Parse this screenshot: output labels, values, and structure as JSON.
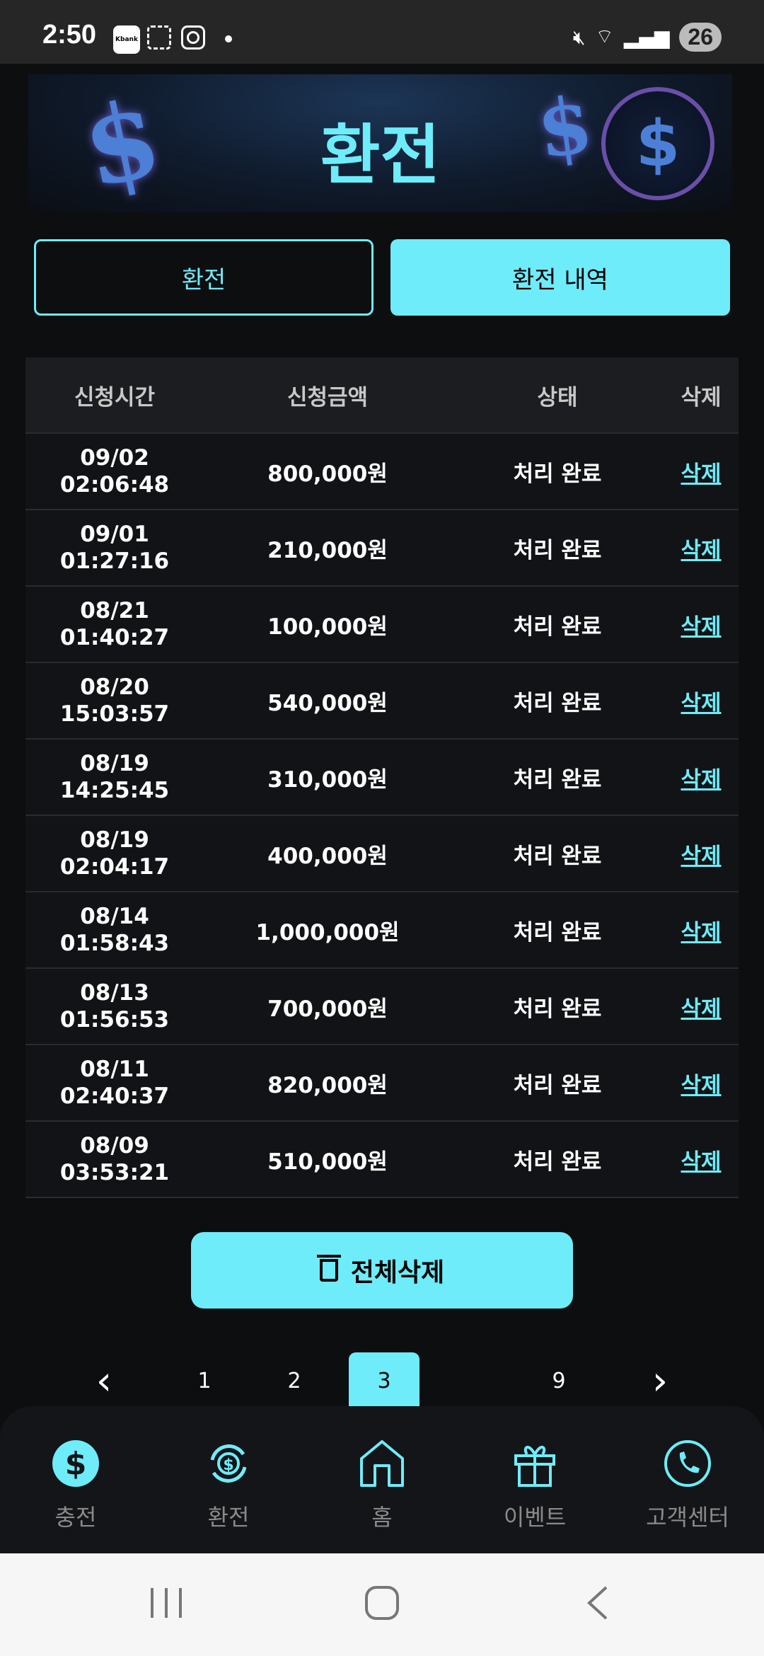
{
  "status_bar": {
    "time": "2:50",
    "app_icons": [
      "kbank-icon",
      "gallery-icon",
      "instagram-icon",
      "dot-icon"
    ],
    "kbank_label": "Kbank",
    "battery": "26",
    "right_icons": [
      "mute-icon",
      "wifi-icon",
      "signal-icon"
    ]
  },
  "banner": {
    "title": "환전"
  },
  "tabs": [
    {
      "label": "환전",
      "active": false
    },
    {
      "label": "환전 내역",
      "active": true
    }
  ],
  "table": {
    "headers": [
      "신청시간",
      "신청금액",
      "상태",
      "삭제"
    ],
    "rows": [
      {
        "date": "09/02",
        "time": "02:06:48",
        "amount": "800,000원",
        "status": "처리 완료",
        "action": "삭제"
      },
      {
        "date": "09/01",
        "time": "01:27:16",
        "amount": "210,000원",
        "status": "처리 완료",
        "action": "삭제"
      },
      {
        "date": "08/21",
        "time": "01:40:27",
        "amount": "100,000원",
        "status": "처리 완료",
        "action": "삭제"
      },
      {
        "date": "08/20",
        "time": "15:03:57",
        "amount": "540,000원",
        "status": "처리 완료",
        "action": "삭제"
      },
      {
        "date": "08/19",
        "time": "14:25:45",
        "amount": "310,000원",
        "status": "처리 완료",
        "action": "삭제"
      },
      {
        "date": "08/19",
        "time": "02:04:17",
        "amount": "400,000원",
        "status": "처리 완료",
        "action": "삭제"
      },
      {
        "date": "08/14",
        "time": "01:58:43",
        "amount": "1,000,000원",
        "status": "처리 완료",
        "action": "삭제"
      },
      {
        "date": "08/13",
        "time": "01:56:53",
        "amount": "700,000원",
        "status": "처리 완료",
        "action": "삭제"
      },
      {
        "date": "08/11",
        "time": "02:40:37",
        "amount": "820,000원",
        "status": "처리 완료",
        "action": "삭제"
      },
      {
        "date": "08/09",
        "time": "03:53:21",
        "amount": "510,000원",
        "status": "처리 완료",
        "action": "삭제"
      }
    ]
  },
  "delete_all": {
    "label": "전체삭제",
    "icon": "trash-icon"
  },
  "pagination": {
    "prev": "‹",
    "pages": [
      "1",
      "2",
      "3",
      "9"
    ],
    "current": "3",
    "next": "›"
  },
  "bottom_nav": [
    {
      "label": "충전",
      "icon": "dollar-coin-icon"
    },
    {
      "label": "환전",
      "icon": "exchange-icon"
    },
    {
      "label": "홈",
      "icon": "home-icon"
    },
    {
      "label": "이벤트",
      "icon": "gift-icon"
    },
    {
      "label": "고객센터",
      "icon": "phone-icon"
    }
  ],
  "colors": {
    "accent": "#6eecfa",
    "background": "#0d0e10"
  }
}
